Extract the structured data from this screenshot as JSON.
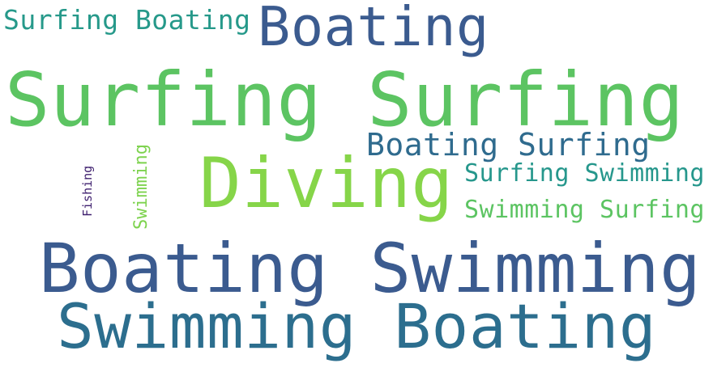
{
  "words": [
    {
      "text": "Surfing Boating",
      "color": "#26998a",
      "orientation": "horizontal"
    },
    {
      "text": "Boating",
      "color": "#3b5b8f",
      "orientation": "horizontal"
    },
    {
      "text": "Surfing Surfing",
      "color": "#5cc462",
      "orientation": "horizontal"
    },
    {
      "text": "Boating Surfing",
      "color": "#2f6b8e",
      "orientation": "horizontal"
    },
    {
      "text": "Diving",
      "color": "#86d549",
      "orientation": "horizontal"
    },
    {
      "text": "Surfing Swimming",
      "color": "#26978c",
      "orientation": "horizontal"
    },
    {
      "text": "Swimming Surfing",
      "color": "#5cc462",
      "orientation": "horizontal"
    },
    {
      "text": "Boating Swimming",
      "color": "#3b5b8f",
      "orientation": "horizontal"
    },
    {
      "text": "Swimming Boating",
      "color": "#2c6e8e",
      "orientation": "horizontal"
    },
    {
      "text": "Fishing",
      "color": "#3e1f6e",
      "orientation": "vertical"
    },
    {
      "text": "Swimming",
      "color": "#7ed34f",
      "orientation": "vertical"
    }
  ]
}
